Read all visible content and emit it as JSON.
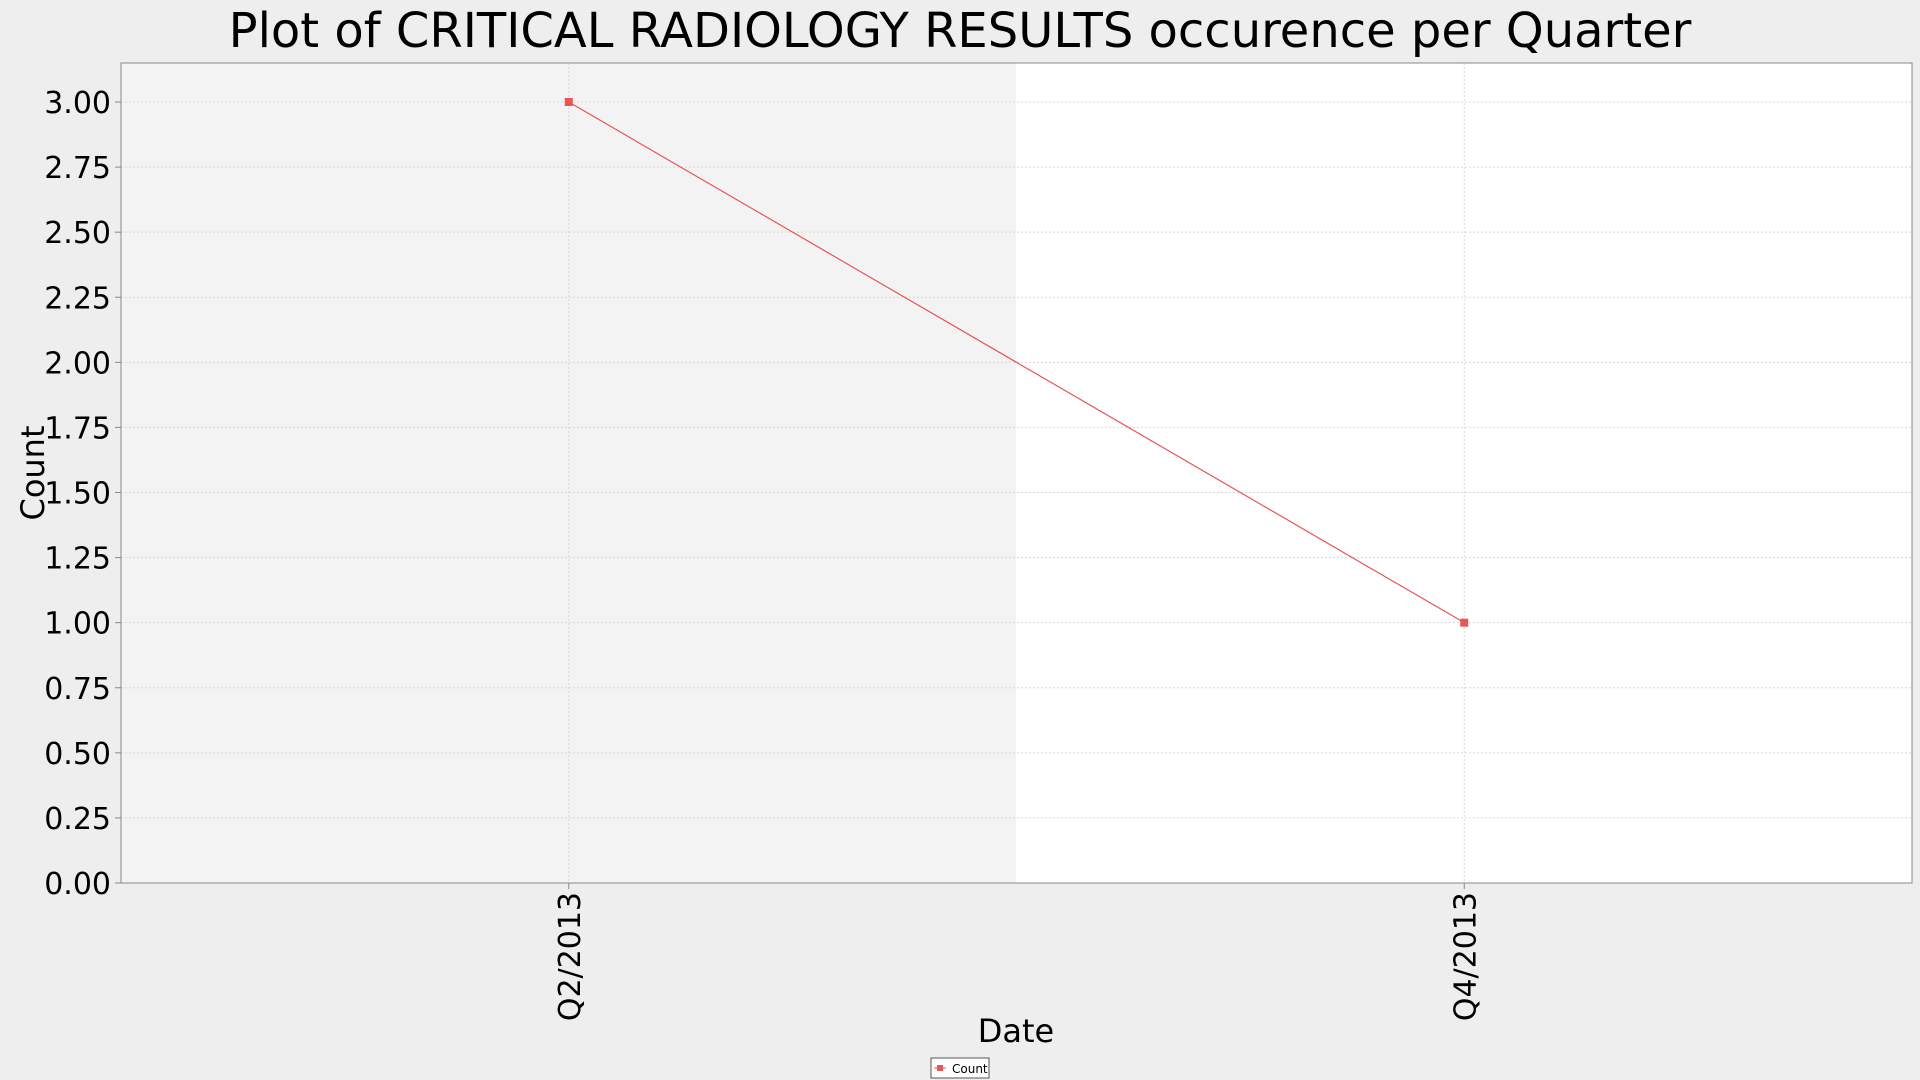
{
  "chart_data": {
    "type": "line",
    "title": "Plot of CRITICAL RADIOLOGY RESULTS occurence per Quarter",
    "xlabel": "Date",
    "ylabel": "Count",
    "categories": [
      "Q2/2013",
      "Q4/2013"
    ],
    "series": [
      {
        "name": "Count",
        "values": [
          3,
          1
        ],
        "color": "#e85555"
      }
    ],
    "ylim": [
      0,
      3.0
    ],
    "yticks": [
      "0.00",
      "0.25",
      "0.50",
      "0.75",
      "1.00",
      "1.25",
      "1.50",
      "1.75",
      "2.00",
      "2.25",
      "2.50",
      "2.75",
      "3.00"
    ],
    "grid": true,
    "legend_position": "bottom-center"
  }
}
